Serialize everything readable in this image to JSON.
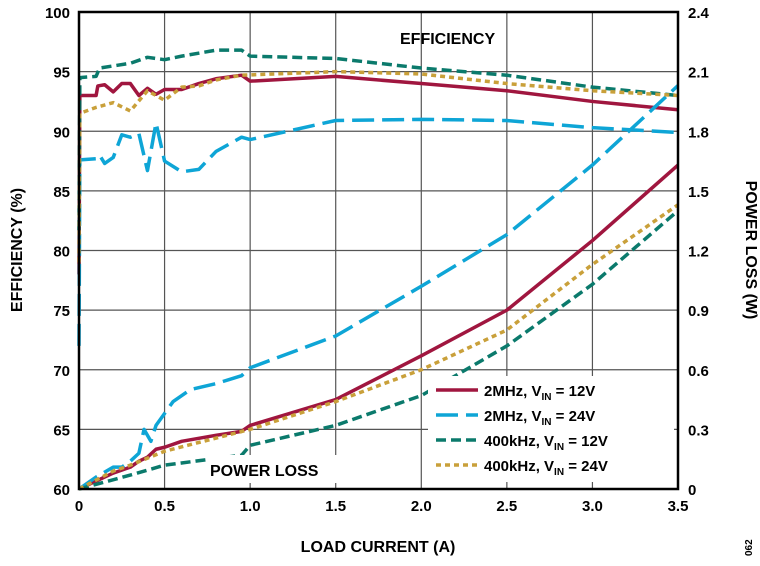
{
  "chart_data": {
    "type": "line",
    "xlabel": "LOAD CURRENT (A)",
    "ylabel": "EFFICIENCY (%)",
    "y2label": "POWER LOSS (W)",
    "xlim": [
      0,
      3.5
    ],
    "ylim": [
      60,
      100
    ],
    "y2lim": [
      0,
      2.4
    ],
    "xticks": [
      "0",
      "0.5",
      "1.0",
      "1.5",
      "2.0",
      "2.5",
      "3.0",
      "3.5"
    ],
    "yticks": [
      "60",
      "65",
      "70",
      "75",
      "80",
      "85",
      "90",
      "95",
      "100"
    ],
    "y2ticks": [
      "0",
      "0.3",
      "0.6",
      "0.9",
      "1.2",
      "1.5",
      "1.8",
      "2.1",
      "2.4"
    ],
    "grid": true,
    "legend_position": "bottom-right",
    "annotations": {
      "efficiency": "EFFICIENCY",
      "power_loss": "POWER LOSS",
      "figure_id": "062"
    },
    "series": [
      {
        "name": "2MHz, V_IN = 12V",
        "label_main": "2MHz, V",
        "label_sub": "IN",
        "label_tail": " = 12V",
        "color": "#a0163f",
        "dash": "solid",
        "efficiency": [
          [
            0,
            78
          ],
          [
            0.005,
            93
          ],
          [
            0.1,
            93
          ],
          [
            0.11,
            93.8
          ],
          [
            0.15,
            93.9
          ],
          [
            0.2,
            93.3
          ],
          [
            0.25,
            94
          ],
          [
            0.3,
            94
          ],
          [
            0.35,
            93
          ],
          [
            0.4,
            93.6
          ],
          [
            0.45,
            93.1
          ],
          [
            0.5,
            93.5
          ],
          [
            0.6,
            93.5
          ],
          [
            0.7,
            94
          ],
          [
            0.8,
            94.4
          ],
          [
            0.95,
            94.7
          ],
          [
            1.0,
            94.2
          ],
          [
            1.5,
            94.6
          ],
          [
            2.0,
            94
          ],
          [
            2.5,
            93.4
          ],
          [
            3.0,
            92.5
          ],
          [
            3.5,
            91.8
          ]
        ],
        "power_loss": [
          [
            0,
            0
          ],
          [
            0.1,
            0.04
          ],
          [
            0.2,
            0.08
          ],
          [
            0.3,
            0.11
          ],
          [
            0.35,
            0.14
          ],
          [
            0.4,
            0.16
          ],
          [
            0.45,
            0.2
          ],
          [
            0.5,
            0.21
          ],
          [
            0.6,
            0.24
          ],
          [
            0.8,
            0.27
          ],
          [
            0.95,
            0.29
          ],
          [
            1.0,
            0.32
          ],
          [
            1.5,
            0.45
          ],
          [
            2.0,
            0.67
          ],
          [
            2.5,
            0.9
          ],
          [
            3.0,
            1.25
          ],
          [
            3.5,
            1.63
          ]
        ]
      },
      {
        "name": "2MHz, V_IN = 24V",
        "label_main": "2MHz, V",
        "label_sub": "IN",
        "label_tail": " = 24V",
        "color": "#0ea5d6",
        "dash": "long",
        "efficiency": [
          [
            0,
            72
          ],
          [
            0.005,
            87.6
          ],
          [
            0.1,
            87.7
          ],
          [
            0.12,
            88
          ],
          [
            0.15,
            87.3
          ],
          [
            0.2,
            87.8
          ],
          [
            0.25,
            89.7
          ],
          [
            0.3,
            89.5
          ],
          [
            0.35,
            89.8
          ],
          [
            0.4,
            86.7
          ],
          [
            0.45,
            90.7
          ],
          [
            0.5,
            87.5
          ],
          [
            0.6,
            86.6
          ],
          [
            0.7,
            86.8
          ],
          [
            0.8,
            88.3
          ],
          [
            0.95,
            89.5
          ],
          [
            1.0,
            89.3
          ],
          [
            1.5,
            90.9
          ],
          [
            2.0,
            91
          ],
          [
            2.5,
            90.9
          ],
          [
            3.0,
            90.3
          ],
          [
            3.5,
            89.9
          ]
        ],
        "power_loss": [
          [
            0,
            0
          ],
          [
            0.1,
            0.06
          ],
          [
            0.2,
            0.11
          ],
          [
            0.25,
            0.11
          ],
          [
            0.3,
            0.14
          ],
          [
            0.35,
            0.18
          ],
          [
            0.38,
            0.3
          ],
          [
            0.42,
            0.24
          ],
          [
            0.45,
            0.32
          ],
          [
            0.5,
            0.38
          ],
          [
            0.55,
            0.44
          ],
          [
            0.65,
            0.5
          ],
          [
            0.8,
            0.53
          ],
          [
            0.95,
            0.57
          ],
          [
            1.0,
            0.61
          ],
          [
            1.5,
            0.77
          ],
          [
            2.0,
            1.02
          ],
          [
            2.5,
            1.28
          ],
          [
            3.0,
            1.63
          ],
          [
            3.5,
            2.03
          ]
        ]
      },
      {
        "name": "400kHz, V_IN = 12V",
        "label_main": "400kHz, V",
        "label_sub": "IN",
        "label_tail": " = 12V",
        "color": "#0b7a6c",
        "dash": "medium",
        "efficiency": [
          [
            0,
            81.7
          ],
          [
            0.005,
            94.5
          ],
          [
            0.1,
            94.6
          ],
          [
            0.12,
            95.3
          ],
          [
            0.3,
            95.7
          ],
          [
            0.4,
            96.2
          ],
          [
            0.5,
            96
          ],
          [
            0.6,
            96.3
          ],
          [
            0.8,
            96.8
          ],
          [
            0.95,
            96.8
          ],
          [
            1.0,
            96.3
          ],
          [
            1.5,
            96.1
          ],
          [
            2.0,
            95.3
          ],
          [
            2.5,
            94.7
          ],
          [
            3.0,
            93.7
          ],
          [
            3.5,
            93
          ]
        ],
        "power_loss": [
          [
            0,
            0
          ],
          [
            0.3,
            0.07
          ],
          [
            0.5,
            0.12
          ],
          [
            0.95,
            0.17
          ],
          [
            1.0,
            0.22
          ],
          [
            1.5,
            0.32
          ],
          [
            2.0,
            0.47
          ],
          [
            2.5,
            0.72
          ],
          [
            3.0,
            1.03
          ],
          [
            3.5,
            1.4
          ]
        ]
      },
      {
        "name": "400kHz, V_IN = 24V",
        "label_main": "400kHz, V",
        "label_sub": "IN",
        "label_tail": " = 24V",
        "color": "#c9a03a",
        "dash": "dotted",
        "efficiency": [
          [
            0,
            79
          ],
          [
            0.005,
            91.5
          ],
          [
            0.1,
            92
          ],
          [
            0.2,
            92.4
          ],
          [
            0.3,
            91.7
          ],
          [
            0.4,
            93.4
          ],
          [
            0.5,
            92.6
          ],
          [
            0.6,
            93.7
          ],
          [
            0.7,
            93.8
          ],
          [
            0.8,
            94.3
          ],
          [
            0.95,
            94.7
          ],
          [
            1.5,
            95
          ],
          [
            2.0,
            94.8
          ],
          [
            2.5,
            94
          ],
          [
            3.0,
            93.4
          ],
          [
            3.5,
            93
          ]
        ],
        "power_loss": [
          [
            0,
            0
          ],
          [
            0.2,
            0.09
          ],
          [
            0.3,
            0.12
          ],
          [
            0.5,
            0.19
          ],
          [
            1.0,
            0.3
          ],
          [
            1.5,
            0.44
          ],
          [
            2.0,
            0.6
          ],
          [
            2.5,
            0.8
          ],
          [
            3.0,
            1.13
          ],
          [
            3.5,
            1.43
          ]
        ]
      }
    ]
  }
}
